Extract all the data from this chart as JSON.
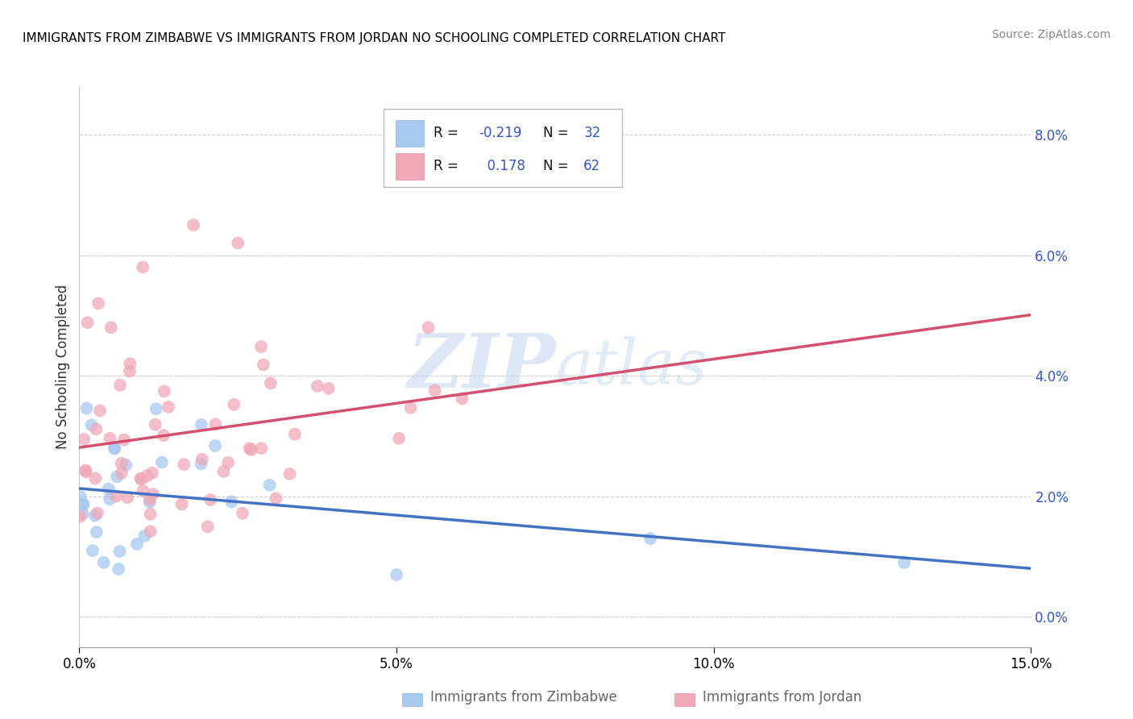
{
  "title": "IMMIGRANTS FROM ZIMBABWE VS IMMIGRANTS FROM JORDAN NO SCHOOLING COMPLETED CORRELATION CHART",
  "source": "Source: ZipAtlas.com",
  "ylabel": "No Schooling Completed",
  "xlim": [
    0.0,
    0.15
  ],
  "ylim": [
    -0.005,
    0.088
  ],
  "xtick_vals": [
    0.0,
    0.05,
    0.1,
    0.15
  ],
  "xtick_labels": [
    "0.0%",
    "5.0%",
    "10.0%",
    "15.0%"
  ],
  "ytick_vals": [
    0.0,
    0.02,
    0.04,
    0.06,
    0.08
  ],
  "ytick_labels": [
    "0.0%",
    "2.0%",
    "4.0%",
    "6.0%",
    "8.0%"
  ],
  "grid_color": "#cccccc",
  "background_color": "#ffffff",
  "watermark_zip": "ZIP",
  "watermark_atlas": "atlas",
  "series1_label": "Immigrants from Zimbabwe",
  "series2_label": "Immigrants from Jordan",
  "series1_color": "#a8c8f0",
  "series2_color": "#f0a8b8",
  "series1_line_color": "#4472c4",
  "series2_line_color": "#d45070",
  "series1_R": -0.219,
  "series1_N": 32,
  "series2_R": 0.178,
  "series2_N": 62,
  "legend_color": "#3355cc",
  "title_color": "#000000",
  "ytick_color": "#3355cc",
  "xtick_color": "#000000"
}
